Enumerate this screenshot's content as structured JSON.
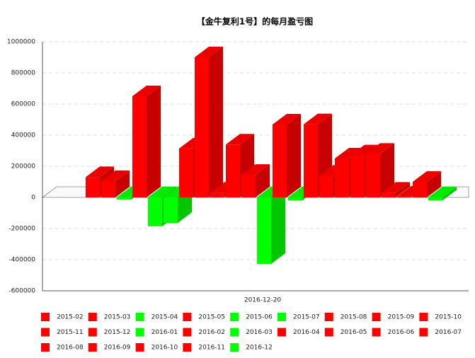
{
  "chart_data": {
    "type": "bar",
    "title": "【金牛复利1号】的每月盈亏图",
    "categories": [
      "2016-12-20"
    ],
    "ylim": [
      -600000,
      1000000
    ],
    "yticks": [
      -600000,
      -400000,
      -200000,
      0,
      200000,
      400000,
      600000,
      800000,
      1000000
    ],
    "grid": true,
    "legend": "bottom",
    "series": [
      {
        "name": "2015-02",
        "color": "#ff0000",
        "values": [
          130000
        ]
      },
      {
        "name": "2015-03",
        "color": "#ff0000",
        "values": [
          105000
        ]
      },
      {
        "name": "2015-04",
        "color": "#00ff00",
        "values": [
          -15000
        ]
      },
      {
        "name": "2015-05",
        "color": "#ff0000",
        "values": [
          650000
        ]
      },
      {
        "name": "2015-06",
        "color": "#00ff00",
        "values": [
          -186000
        ]
      },
      {
        "name": "2015-07",
        "color": "#00ff00",
        "values": [
          -164000
        ]
      },
      {
        "name": "2015-08",
        "color": "#ff0000",
        "values": [
          314000
        ]
      },
      {
        "name": "2015-09",
        "color": "#ff0000",
        "values": [
          900000
        ]
      },
      {
        "name": "2015-10",
        "color": "#ff0000",
        "values": [
          30000
        ]
      },
      {
        "name": "2015-11",
        "color": "#ff0000",
        "values": [
          340000
        ]
      },
      {
        "name": "2015-12",
        "color": "#ff0000",
        "values": [
          145000
        ]
      },
      {
        "name": "2016-01",
        "color": "#00ff00",
        "values": [
          -427000
        ]
      },
      {
        "name": "2016-02",
        "color": "#ff0000",
        "values": [
          468000
        ]
      },
      {
        "name": "2016-03",
        "color": "#00ff00",
        "values": [
          -20000
        ]
      },
      {
        "name": "2016-04",
        "color": "#ff0000",
        "values": [
          470000
        ]
      },
      {
        "name": "2016-05",
        "color": "#ff0000",
        "values": [
          140000
        ]
      },
      {
        "name": "2016-06",
        "color": "#ff0000",
        "values": [
          250000
        ]
      },
      {
        "name": "2016-07",
        "color": "#ff0000",
        "values": [
          270000
        ]
      },
      {
        "name": "2016-08",
        "color": "#ff0000",
        "values": [
          280000
        ]
      },
      {
        "name": "2016-09",
        "color": "#ff0000",
        "values": [
          30000
        ]
      },
      {
        "name": "2016-10",
        "color": "#ff0000",
        "values": [
          5000
        ]
      },
      {
        "name": "2016-11",
        "color": "#ff0000",
        "values": [
          100000
        ]
      },
      {
        "name": "2016-12",
        "color": "#00ff00",
        "values": [
          -20000
        ]
      }
    ]
  }
}
